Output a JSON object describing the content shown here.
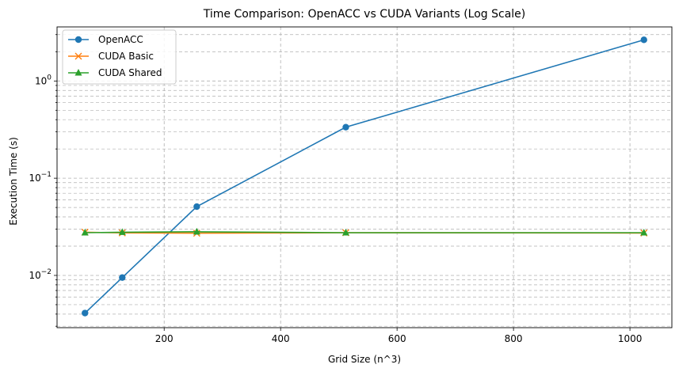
{
  "chart_data": {
    "type": "line",
    "title": "Time Comparison: OpenACC vs CUDA Variants (Log Scale)",
    "xlabel": "Grid Size (n^3)",
    "ylabel": "Execution Time (s)",
    "x": [
      64,
      128,
      256,
      512,
      1024
    ],
    "xlim": [
      16,
      1072
    ],
    "ylim": [
      0.0029,
      3.6
    ],
    "yscale": "log",
    "x_ticks": [
      200,
      400,
      600,
      800,
      1000
    ],
    "x_tick_labels": [
      "200",
      "400",
      "600",
      "800",
      "1000"
    ],
    "y_ticks": [
      0.01,
      0.1,
      1
    ],
    "y_tick_labels": [
      "10^-2",
      "10^-1",
      "10^0"
    ],
    "grid": true,
    "legend_position": "top-left",
    "series": [
      {
        "name": "OpenACC",
        "marker": "circle",
        "color": "#1f77b4",
        "values": [
          0.0041,
          0.0095,
          0.051,
          0.335,
          2.65
        ]
      },
      {
        "name": "CUDA Basic",
        "marker": "x",
        "color": "#ff7f0e",
        "values": [
          0.0278,
          0.0274,
          0.0272,
          0.0275,
          0.0273
        ]
      },
      {
        "name": "CUDA Shared",
        "marker": "triangle",
        "color": "#2ca02c",
        "values": [
          0.0275,
          0.0278,
          0.0281,
          0.0275,
          0.0275
        ]
      }
    ]
  }
}
